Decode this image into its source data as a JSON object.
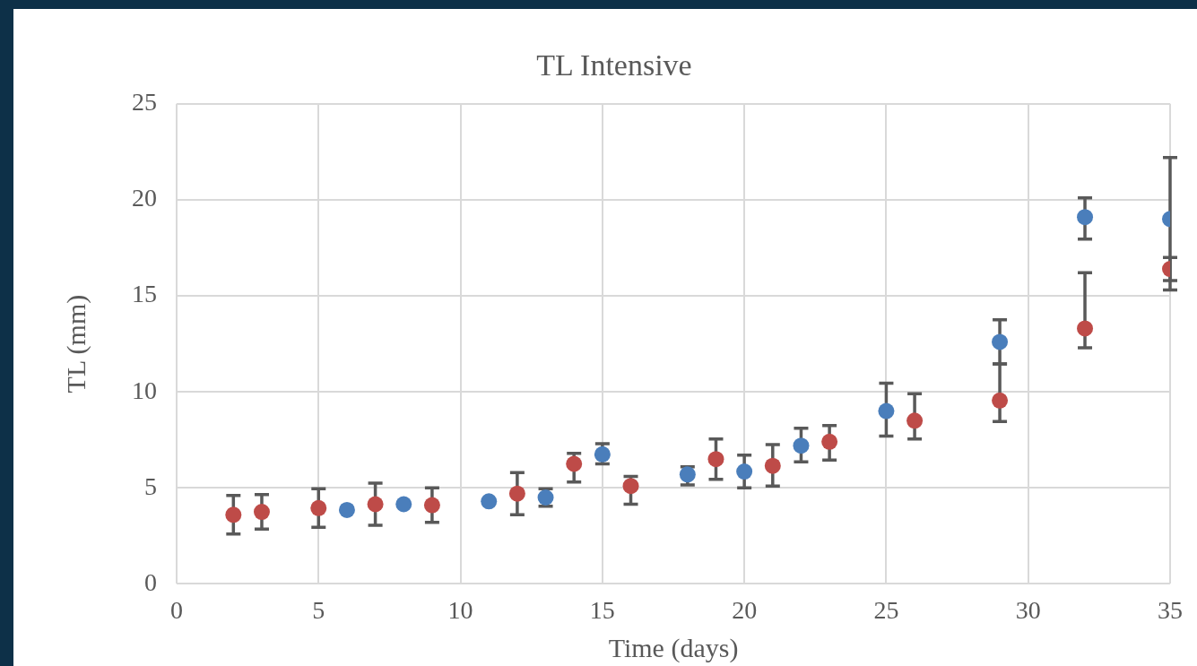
{
  "chart_data": {
    "type": "scatter",
    "title": "TL Intensive",
    "xlabel": "Time (days)",
    "ylabel": "TL (mm)",
    "xlim": [
      0,
      35
    ],
    "xticks": [
      0,
      5,
      10,
      15,
      20,
      25,
      30,
      35
    ],
    "ylim": [
      0,
      25
    ],
    "yticks": [
      0,
      5,
      10,
      15,
      20,
      25
    ],
    "grid": true,
    "marker": "circle",
    "series": [
      {
        "color": "#4a7ebb",
        "x": [
          6,
          8,
          11,
          13,
          15,
          18,
          20,
          22,
          25,
          29,
          32,
          35
        ],
        "values": [
          3.85,
          4.15,
          4.3,
          4.5,
          6.75,
          5.7,
          5.85,
          7.2,
          9.0,
          12.6,
          19.1,
          19.0
        ],
        "errors": [
          null,
          null,
          null,
          [
            4.05,
            4.95
          ],
          [
            6.25,
            7.3
          ],
          [
            5.15,
            6.1
          ],
          [
            5.0,
            6.7
          ],
          [
            6.35,
            8.1
          ],
          [
            7.7,
            10.45
          ],
          [
            11.45,
            13.75
          ],
          [
            17.95,
            20.1
          ],
          [
            15.3,
            22.2
          ]
        ]
      },
      {
        "color": "#be4b48",
        "x": [
          2,
          3,
          5,
          7,
          9,
          12,
          14,
          16,
          19,
          21,
          23,
          26,
          29,
          32,
          35
        ],
        "values": [
          3.6,
          3.75,
          3.95,
          4.15,
          4.1,
          4.7,
          6.25,
          5.1,
          6.5,
          6.15,
          7.4,
          8.5,
          9.55,
          13.3,
          16.4
        ],
        "errors": [
          1.0,
          0.9,
          1.0,
          1.1,
          0.9,
          1.1,
          [
            5.3,
            6.8
          ],
          [
            4.15,
            5.6
          ],
          [
            5.45,
            7.55
          ],
          [
            5.1,
            7.25
          ],
          [
            6.45,
            8.25
          ],
          [
            7.55,
            9.9
          ],
          [
            8.45,
            11.45
          ],
          [
            12.3,
            16.2
          ],
          0.6
        ]
      }
    ]
  }
}
